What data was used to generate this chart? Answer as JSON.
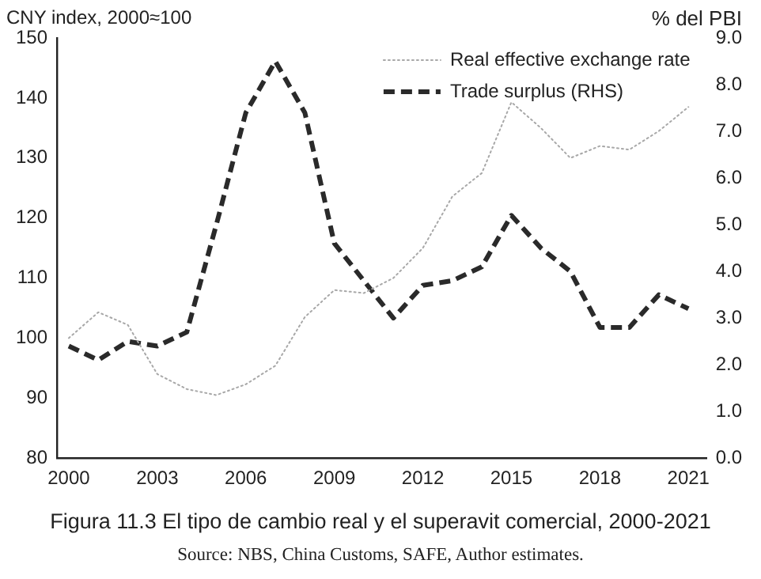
{
  "chart_data": {
    "type": "line",
    "title": "Figura 11.3 El tipo de cambio real y el superavit comercial, 2000-2021",
    "ylabel": "CNY index, 2000≈100",
    "y2label": "% del PBI",
    "annotations": [
      "Source: NBS, China Customs, SAFE, Author estimates."
    ],
    "x": [
      2000,
      2001,
      2002,
      2003,
      2004,
      2005,
      2006,
      2007,
      2008,
      2009,
      2010,
      2011,
      2012,
      2013,
      2014,
      2015,
      2016,
      2017,
      2018,
      2019,
      2020,
      2021
    ],
    "series": [
      {
        "name": "Real effective exchange rate",
        "color": "#a8a8a8",
        "line_style": "dotted",
        "values": [
          100,
          104.3,
          102.2,
          94,
          91.5,
          90.5,
          92.3,
          95.4,
          103.5,
          108,
          107.5,
          110,
          115,
          123.6,
          127.5,
          139.3,
          135,
          130,
          132,
          131.4,
          134.5,
          138.5
        ]
      },
      {
        "name": "Trade surplus (RHS)",
        "color": "#2a2a2a",
        "line_style": "dashed",
        "axis": "y2",
        "values": [
          2.4,
          2.1,
          2.5,
          2.4,
          2.7,
          5.0,
          7.4,
          8.5,
          7.4,
          4.6,
          3.8,
          3.0,
          3.7,
          3.8,
          4.1,
          5.2,
          4.5,
          4.0,
          2.8,
          2.8,
          3.5,
          3.2
        ]
      }
    ],
    "xlim": [
      1999.6,
      2021.6
    ],
    "xticks": [
      2000,
      2003,
      2006,
      2009,
      2012,
      2015,
      2018,
      2021
    ],
    "ylim": [
      80,
      150
    ],
    "yticks": [
      80,
      90,
      100,
      110,
      120,
      130,
      140,
      150
    ],
    "y2lim": [
      0,
      9
    ],
    "y2ticks": [
      {
        "value": 0,
        "label": "0.0"
      },
      {
        "value": 1,
        "label": "1.0"
      },
      {
        "value": 2,
        "label": "2.0"
      },
      {
        "value": 3,
        "label": "3.0"
      },
      {
        "value": 4,
        "label": "4.0"
      },
      {
        "value": 5,
        "label": "5.0"
      },
      {
        "value": 6,
        "label": "6.0"
      },
      {
        "value": 7,
        "label": "7.0"
      },
      {
        "value": 8,
        "label": "8.0"
      },
      {
        "value": 9,
        "label": "9.0"
      }
    ],
    "legend": "top right",
    "grid": false,
    "marker": "none"
  }
}
